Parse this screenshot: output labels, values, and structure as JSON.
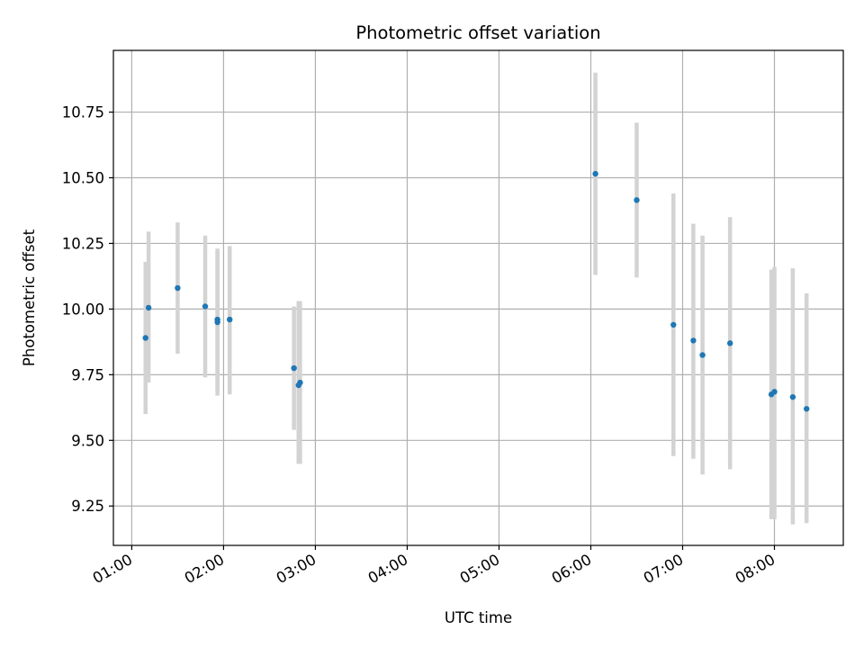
{
  "chart_data": {
    "type": "scatter",
    "title": "Photometric offset variation",
    "xlabel": "UTC time",
    "ylabel": "Photometric offset",
    "x_axis_kind": "time",
    "xlim": [
      "00:48",
      "08:45"
    ],
    "ylim": [
      9.1,
      10.985
    ],
    "grid": true,
    "y_ticks": [
      9.25,
      9.5,
      9.75,
      10.0,
      10.25,
      10.5,
      10.75
    ],
    "y_tick_labels": [
      "9.25",
      "9.50",
      "9.75",
      "10.00",
      "10.25",
      "10.50",
      "10.75"
    ],
    "x_ticks": [
      "01:00",
      "02:00",
      "03:00",
      "04:00",
      "05:00",
      "06:00",
      "07:00",
      "08:00"
    ],
    "colors": {
      "marker": "#1f77b4",
      "errorbar": "#d3d3d3",
      "grid": "#b0b0b0"
    },
    "series": [
      {
        "points": [
          {
            "x": "01:09",
            "y": 9.89,
            "ylow": 9.6,
            "yhigh": 10.18
          },
          {
            "x": "01:11",
            "y": 10.005,
            "ylow": 9.72,
            "yhigh": 10.295
          },
          {
            "x": "01:30",
            "y": 10.08,
            "ylow": 9.83,
            "yhigh": 10.33
          },
          {
            "x": "01:48",
            "y": 10.01,
            "ylow": 9.74,
            "yhigh": 10.28
          },
          {
            "x": "01:56",
            "y": 9.96,
            "ylow": 9.69,
            "yhigh": 10.23
          },
          {
            "x": "01:56",
            "y": 9.95,
            "ylow": 9.67,
            "yhigh": 10.22
          },
          {
            "x": "02:04",
            "y": 9.96,
            "ylow": 9.675,
            "yhigh": 10.24
          },
          {
            "x": "02:46",
            "y": 9.775,
            "ylow": 9.54,
            "yhigh": 10.01
          },
          {
            "x": "02:49",
            "y": 9.71,
            "ylow": 9.41,
            "yhigh": 10.03
          },
          {
            "x": "02:50",
            "y": 9.72,
            "ylow": 9.41,
            "yhigh": 10.03
          },
          {
            "x": "06:03",
            "y": 10.515,
            "ylow": 10.13,
            "yhigh": 10.9
          },
          {
            "x": "06:30",
            "y": 10.415,
            "ylow": 10.12,
            "yhigh": 10.71
          },
          {
            "x": "06:54",
            "y": 9.94,
            "ylow": 9.44,
            "yhigh": 10.44
          },
          {
            "x": "07:07",
            "y": 9.88,
            "ylow": 9.43,
            "yhigh": 10.325
          },
          {
            "x": "07:13",
            "y": 9.825,
            "ylow": 9.37,
            "yhigh": 10.28
          },
          {
            "x": "07:31",
            "y": 9.87,
            "ylow": 9.39,
            "yhigh": 10.35
          },
          {
            "x": "07:58",
            "y": 9.675,
            "ylow": 9.2,
            "yhigh": 10.15
          },
          {
            "x": "08:00",
            "y": 9.685,
            "ylow": 9.2,
            "yhigh": 10.16
          },
          {
            "x": "08:12",
            "y": 9.665,
            "ylow": 9.18,
            "yhigh": 10.155
          },
          {
            "x": "08:21",
            "y": 9.62,
            "ylow": 9.185,
            "yhigh": 10.06
          }
        ]
      }
    ]
  }
}
